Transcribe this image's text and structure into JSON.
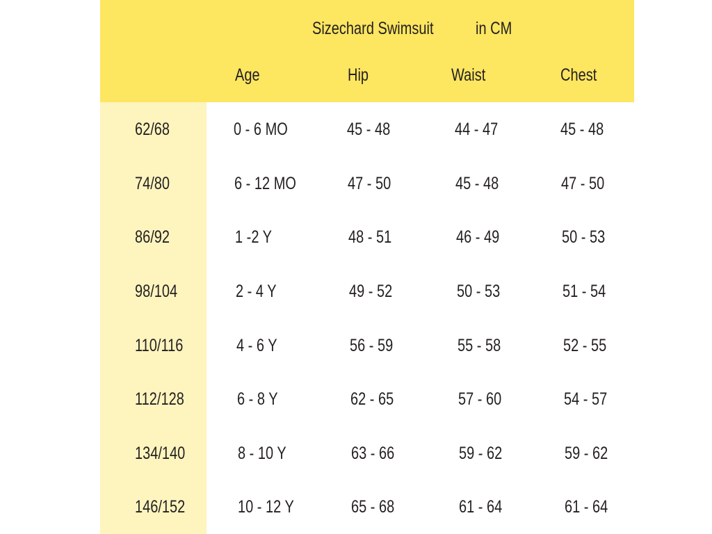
{
  "title": "Sizechard Swimsuit",
  "unit": "in CM",
  "columns": [
    "Age",
    "Hip",
    "Waist",
    "Chest"
  ],
  "colors": {
    "header": "#fde660",
    "size_column": "#fef4be"
  },
  "rows": [
    {
      "size": "62/68",
      "age": "0 - 6 MO",
      "hip": "45 - 48",
      "waist": "44 - 47",
      "chest": "45 - 48"
    },
    {
      "size": "74/80",
      "age": "6 - 12 MO",
      "hip": "47 - 50",
      "waist": "45 - 48",
      "chest": "47 - 50"
    },
    {
      "size": "86/92",
      "age": "1 -2  Y",
      "hip": "48 - 51",
      "waist": "46 - 49",
      "chest": "50 - 53"
    },
    {
      "size": "98/104",
      "age": "2 - 4  Y",
      "hip": "49 - 52",
      "waist": "50 - 53",
      "chest": "51 - 54"
    },
    {
      "size": "110/116",
      "age": "4 - 6  Y",
      "hip": "56 - 59",
      "waist": "55 - 58",
      "chest": "52 - 55"
    },
    {
      "size": "112/128",
      "age": "6 - 8  Y",
      "hip": "62 - 65",
      "waist": "57 - 60",
      "chest": "54 - 57"
    },
    {
      "size": "134/140",
      "age": "8 - 10  Y",
      "hip": "63 - 66",
      "waist": "59 - 62",
      "chest": "59 - 62"
    },
    {
      "size": "146/152",
      "age": "10 - 12  Y",
      "hip": "65 - 68",
      "waist": "61 - 64",
      "chest": "61 - 64"
    }
  ]
}
